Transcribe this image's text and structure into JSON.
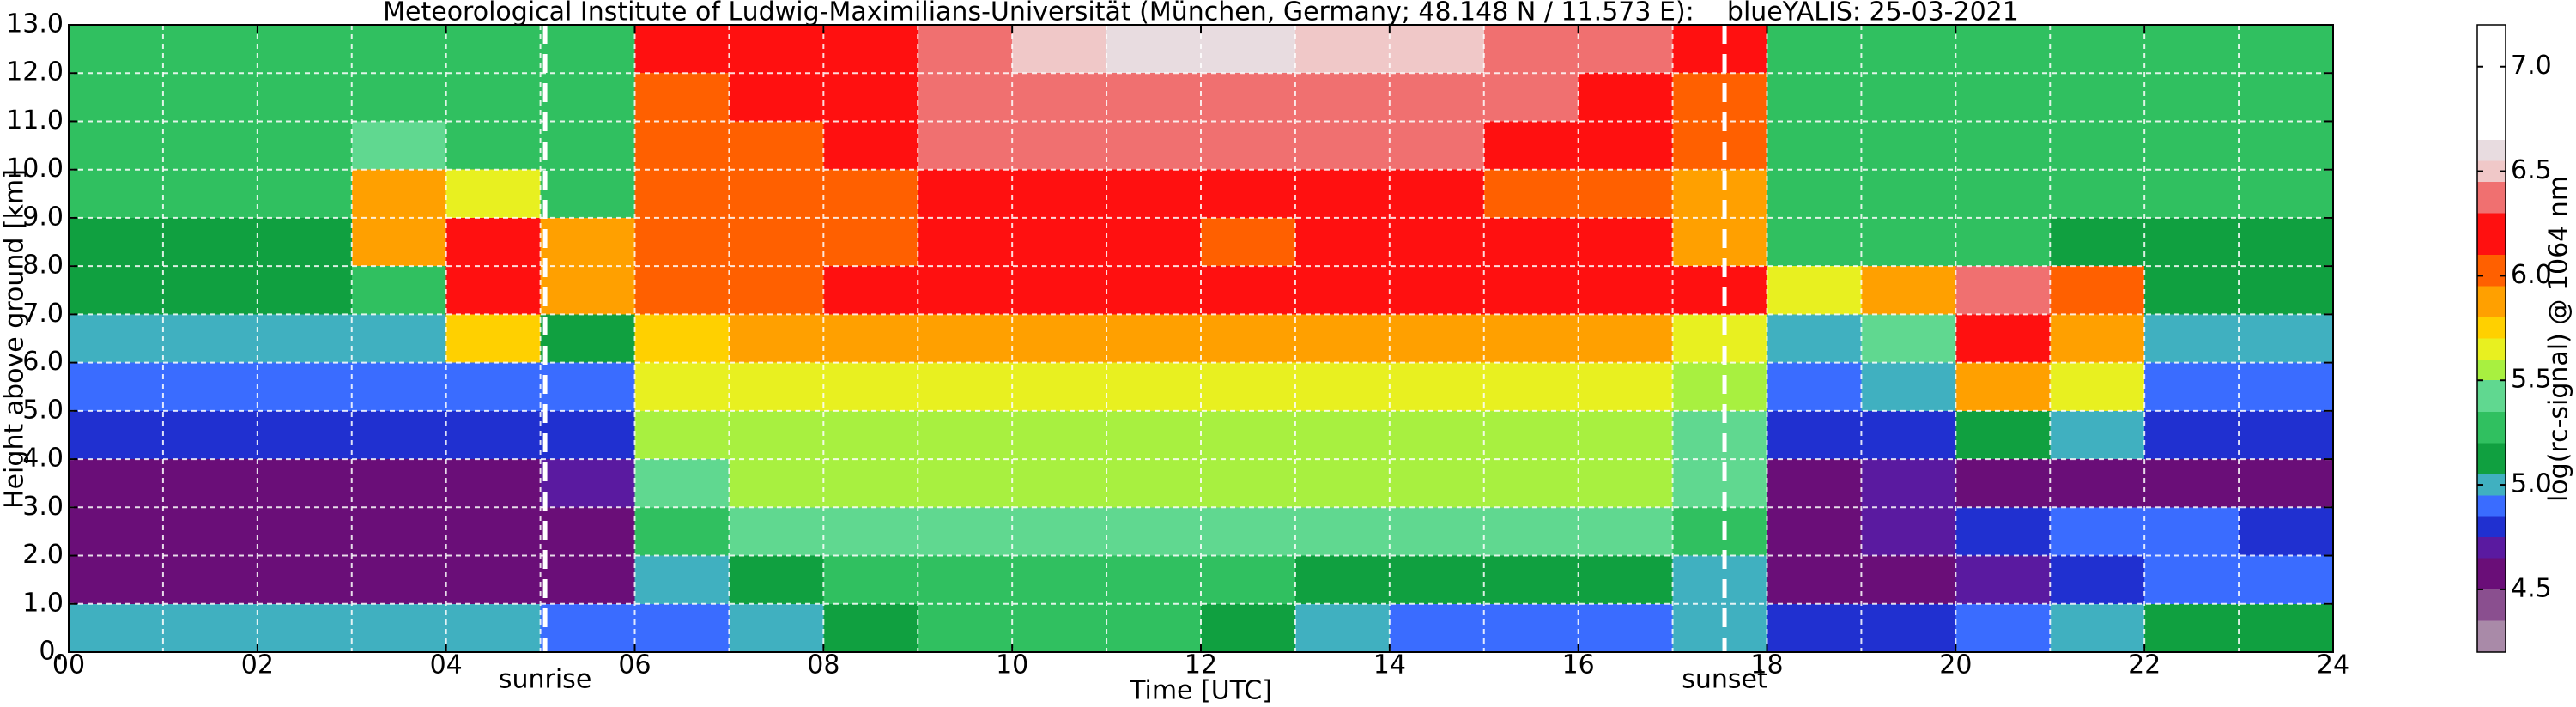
{
  "chart_data": {
    "type": "heatmap",
    "title": "Meteorological Institute of Ludwig-Maximilians-Universität (München, Germany; 48.148 N / 11.573 E):    blueYALIS: 25-03-2021",
    "xlabel": "Time [UTC]",
    "ylabel": "Height above ground [km]",
    "colorbar_label": "log(rc-signal) @ 1064 nm",
    "xlim": [
      0,
      24
    ],
    "ylim": [
      0,
      13
    ],
    "clim": [
      4.2,
      7.2
    ],
    "xticks": [
      {
        "value": 0,
        "label": "00"
      },
      {
        "value": 2,
        "label": "02"
      },
      {
        "value": 4,
        "label": "04"
      },
      {
        "value": 6,
        "label": "06"
      },
      {
        "value": 8,
        "label": "08"
      },
      {
        "value": 10,
        "label": "10"
      },
      {
        "value": 12,
        "label": "12"
      },
      {
        "value": 14,
        "label": "14"
      },
      {
        "value": 16,
        "label": "16"
      },
      {
        "value": 18,
        "label": "18"
      },
      {
        "value": 20,
        "label": "20"
      },
      {
        "value": 22,
        "label": "22"
      },
      {
        "value": 24,
        "label": "24"
      }
    ],
    "xminorticks": [
      1,
      3,
      5,
      7,
      9,
      11,
      13,
      15,
      17,
      19,
      21,
      23
    ],
    "yticks": [
      {
        "value": 0,
        "label": "0."
      },
      {
        "value": 1,
        "label": "1.0"
      },
      {
        "value": 2,
        "label": "2.0"
      },
      {
        "value": 3,
        "label": "3.0"
      },
      {
        "value": 4,
        "label": "4.0"
      },
      {
        "value": 5,
        "label": "5.0"
      },
      {
        "value": 6,
        "label": "6.0"
      },
      {
        "value": 7,
        "label": "7.0"
      },
      {
        "value": 8,
        "label": "8.0"
      },
      {
        "value": 9,
        "label": "9.0"
      },
      {
        "value": 10,
        "label": "10.0"
      },
      {
        "value": 11,
        "label": "11.0"
      },
      {
        "value": 12,
        "label": "12.0"
      },
      {
        "value": 13,
        "label": "13.0"
      }
    ],
    "cticks": [
      {
        "value": 4.5,
        "label": "4.5"
      },
      {
        "value": 5,
        "label": "5.0"
      },
      {
        "value": 5.5,
        "label": "5.5"
      },
      {
        "value": 6,
        "label": "6.0"
      },
      {
        "value": 6.5,
        "label": "6.5"
      },
      {
        "value": 7,
        "label": "7.0"
      }
    ],
    "grid": true,
    "grid_color": "#ffffff",
    "colormap": [
      {
        "value": 4.2,
        "color": "#a98aa8"
      },
      {
        "value": 4.35,
        "color": "#8a4f8f"
      },
      {
        "value": 4.5,
        "color": "#6a0e78"
      },
      {
        "value": 4.65,
        "color": "#5a1aa0"
      },
      {
        "value": 4.75,
        "color": "#2030d0"
      },
      {
        "value": 4.85,
        "color": "#3a6cff"
      },
      {
        "value": 4.95,
        "color": "#40b0c0"
      },
      {
        "value": 5.05,
        "color": "#10a040"
      },
      {
        "value": 5.2,
        "color": "#30c060"
      },
      {
        "value": 5.35,
        "color": "#60d890"
      },
      {
        "value": 5.5,
        "color": "#a8f040"
      },
      {
        "value": 5.6,
        "color": "#e8f020"
      },
      {
        "value": 5.7,
        "color": "#ffd000"
      },
      {
        "value": 5.8,
        "color": "#ffa000"
      },
      {
        "value": 5.95,
        "color": "#ff6000"
      },
      {
        "value": 6.1,
        "color": "#ff1010"
      },
      {
        "value": 6.3,
        "color": "#f07070"
      },
      {
        "value": 6.45,
        "color": "#f0c8c8"
      },
      {
        "value": 6.55,
        "color": "#e8dce0"
      },
      {
        "value": 6.65,
        "color": "#ffffff"
      }
    ],
    "x_edges": [
      0,
      1,
      2,
      3,
      4,
      5,
      6,
      7,
      8,
      9,
      10,
      11,
      12,
      13,
      14,
      15,
      16,
      17,
      18,
      19,
      20,
      21,
      22,
      23,
      24
    ],
    "y_edges": [
      0,
      1,
      2,
      3,
      4,
      5,
      6,
      7,
      8,
      9,
      10,
      11,
      12,
      13
    ],
    "z": [
      [
        5.0,
        5.0,
        5.0,
        5.0,
        5.0,
        4.9,
        4.9,
        5.0,
        5.1,
        5.2,
        5.2,
        5.2,
        5.1,
        5.0,
        4.9,
        4.9,
        4.9,
        5.0,
        4.8,
        4.8,
        4.9,
        5.0,
        5.1,
        5.1
      ],
      [
        4.5,
        4.5,
        4.5,
        4.5,
        4.6,
        4.6,
        5.0,
        5.1,
        5.2,
        5.2,
        5.2,
        5.2,
        5.2,
        5.1,
        5.1,
        5.1,
        5.1,
        5.0,
        4.6,
        4.6,
        4.7,
        4.8,
        4.9,
        4.9
      ],
      [
        4.5,
        4.5,
        4.5,
        4.5,
        4.5,
        4.6,
        5.3,
        5.4,
        5.4,
        5.4,
        5.4,
        5.4,
        5.4,
        5.4,
        5.4,
        5.4,
        5.4,
        5.3,
        4.6,
        4.7,
        4.8,
        4.9,
        4.9,
        4.8
      ],
      [
        4.6,
        4.6,
        4.6,
        4.6,
        4.6,
        4.7,
        5.4,
        5.5,
        5.5,
        5.5,
        5.5,
        5.5,
        5.5,
        5.5,
        5.5,
        5.5,
        5.5,
        5.4,
        4.6,
        4.7,
        4.6,
        4.6,
        4.6,
        4.6
      ],
      [
        4.8,
        4.8,
        4.8,
        4.8,
        4.8,
        4.8,
        5.5,
        5.5,
        5.5,
        5.5,
        5.5,
        5.5,
        5.5,
        5.5,
        5.5,
        5.5,
        5.5,
        5.4,
        4.8,
        4.8,
        5.1,
        5.0,
        4.8,
        4.8
      ],
      [
        4.9,
        4.9,
        4.9,
        4.9,
        4.9,
        4.9,
        5.6,
        5.6,
        5.6,
        5.6,
        5.6,
        5.6,
        5.6,
        5.6,
        5.6,
        5.6,
        5.6,
        5.5,
        4.9,
        5.0,
        5.9,
        5.6,
        4.9,
        4.9
      ],
      [
        5.0,
        5.0,
        5.0,
        5.0,
        5.7,
        5.1,
        5.7,
        5.8,
        5.8,
        5.8,
        5.8,
        5.8,
        5.8,
        5.8,
        5.8,
        5.8,
        5.8,
        5.6,
        5.0,
        5.4,
        6.1,
        5.8,
        5.0,
        5.0
      ],
      [
        5.1,
        5.1,
        5.1,
        5.3,
        6.1,
        5.8,
        6.0,
        6.0,
        6.1,
        6.1,
        6.1,
        6.1,
        6.1,
        6.1,
        6.1,
        6.1,
        6.2,
        6.1,
        5.6,
        5.9,
        6.3,
        6.0,
        5.1,
        5.1
      ],
      [
        5.1,
        5.1,
        5.1,
        5.8,
        6.1,
        5.9,
        6.0,
        6.0,
        6.0,
        6.1,
        6.1,
        6.1,
        6.0,
        6.1,
        6.1,
        6.1,
        6.1,
        5.9,
        5.2,
        5.2,
        5.2,
        5.1,
        5.1,
        5.1
      ],
      [
        5.2,
        5.2,
        5.2,
        5.9,
        5.6,
        5.3,
        6.0,
        6.0,
        6.0,
        6.2,
        6.2,
        6.1,
        6.1,
        6.2,
        6.2,
        6.0,
        6.0,
        5.9,
        5.2,
        5.2,
        5.2,
        5.2,
        5.2,
        5.2
      ],
      [
        5.2,
        5.2,
        5.2,
        5.4,
        5.2,
        5.2,
        6.0,
        6.0,
        6.1,
        6.3,
        6.3,
        6.3,
        6.3,
        6.3,
        6.3,
        6.2,
        6.1,
        6.0,
        5.2,
        5.2,
        5.2,
        5.2,
        5.2,
        5.2
      ],
      [
        5.2,
        5.2,
        5.2,
        5.2,
        5.2,
        5.2,
        6.0,
        6.1,
        6.2,
        6.3,
        6.4,
        6.4,
        6.4,
        6.4,
        6.4,
        6.3,
        6.2,
        6.0,
        5.2,
        5.2,
        5.2,
        5.2,
        5.2,
        5.2
      ],
      [
        5.2,
        5.2,
        5.2,
        5.2,
        5.2,
        5.2,
        6.1,
        6.1,
        6.2,
        6.4,
        6.5,
        6.6,
        6.6,
        6.5,
        6.5,
        6.4,
        6.3,
        6.1,
        5.2,
        5.2,
        5.2,
        5.2,
        5.2,
        5.2
      ]
    ],
    "annotations": [
      {
        "x": 5.05,
        "label": "sunrise"
      },
      {
        "x": 17.55,
        "label": "sunset"
      }
    ]
  }
}
